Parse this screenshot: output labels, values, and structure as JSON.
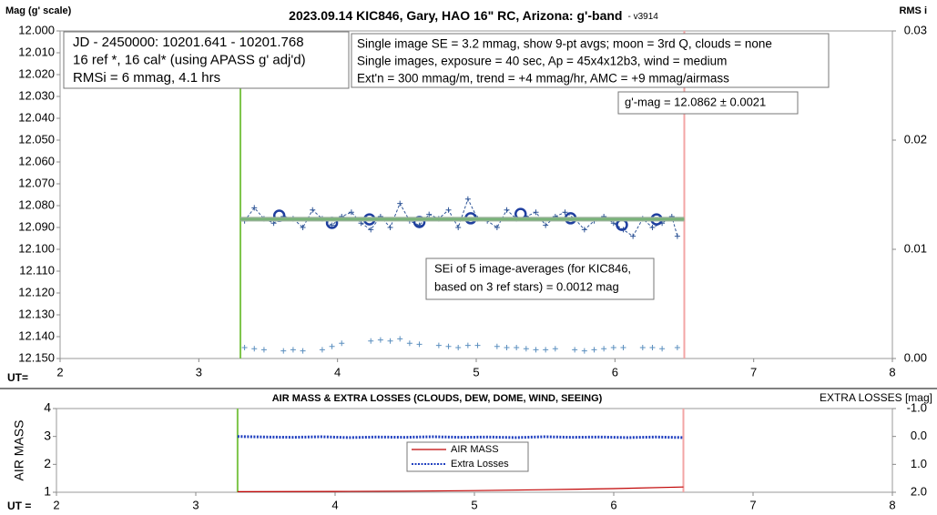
{
  "chart_data": [
    {
      "type": "line",
      "title": "2023.09.14 KIC846, Gary, HAO 16\" RC, Arizona: g'-band",
      "subtitle": "- v3914",
      "y_label": "Mag (g' scale)",
      "y2_label": "RMS i",
      "x_label": "UT=",
      "xlim": [
        2,
        8
      ],
      "xticks": [
        2,
        3,
        4,
        5,
        6,
        7,
        8
      ],
      "ylim": [
        12.0,
        12.15
      ],
      "y_inverted": true,
      "yticks": [
        {
          "value": 12.0,
          "label": "12.000"
        },
        {
          "value": 12.01,
          "label": "12.010"
        },
        {
          "value": 12.02,
          "label": "12.020"
        },
        {
          "value": 12.03,
          "label": "12.030"
        },
        {
          "value": 12.04,
          "label": "12.040"
        },
        {
          "value": 12.05,
          "label": "12.050"
        },
        {
          "value": 12.06,
          "label": "12.060"
        },
        {
          "value": 12.07,
          "label": "12.070"
        },
        {
          "value": 12.08,
          "label": "12.080"
        },
        {
          "value": 12.09,
          "label": "12.090"
        },
        {
          "value": 12.1,
          "label": "12.100"
        },
        {
          "value": 12.11,
          "label": "12.110"
        },
        {
          "value": 12.12,
          "label": "12.120"
        },
        {
          "value": 12.13,
          "label": "12.130"
        },
        {
          "value": 12.14,
          "label": "12.140"
        },
        {
          "value": 12.15,
          "label": "12.150"
        }
      ],
      "y2lim": [
        0,
        0.03
      ],
      "y2ticks": [
        {
          "value": 0,
          "label": "0.00"
        },
        {
          "value": 0.01,
          "label": "0.01"
        },
        {
          "value": 0.02,
          "label": "0.02"
        },
        {
          "value": 0.03,
          "label": "0.03"
        }
      ],
      "vlines": [
        {
          "x": 3.3,
          "color": "#7dc54a"
        },
        {
          "x": 6.5,
          "color": "#f3a5a5"
        }
      ],
      "series": [
        {
          "color": "#2f5597",
          "marker": "plus",
          "line": "dashed",
          "x": [
            3.33,
            3.4,
            3.47,
            3.54,
            3.61,
            3.68,
            3.75,
            3.82,
            3.89,
            3.96,
            4.03,
            4.1,
            4.17,
            4.24,
            4.31,
            4.38,
            4.45,
            4.52,
            4.59,
            4.66,
            4.73,
            4.8,
            4.87,
            4.94,
            5.01,
            5.08,
            5.15,
            5.22,
            5.29,
            5.36,
            5.43,
            5.5,
            5.57,
            5.64,
            5.71,
            5.78,
            5.85,
            5.92,
            5.99,
            6.06,
            6.13,
            6.2,
            6.27,
            6.34,
            6.41,
            6.45
          ],
          "values": [
            12.087,
            12.081,
            12.086,
            12.088,
            12.085,
            12.086,
            12.09,
            12.082,
            12.086,
            12.089,
            12.085,
            12.083,
            12.088,
            12.091,
            12.085,
            12.09,
            12.079,
            12.087,
            12.089,
            12.084,
            12.086,
            12.082,
            12.09,
            12.077,
            12.086,
            12.087,
            12.09,
            12.082,
            12.086,
            12.085,
            12.083,
            12.089,
            12.085,
            12.083,
            12.086,
            12.091,
            12.087,
            12.085,
            12.088,
            12.091,
            12.094,
            12.086,
            12.09,
            12.088,
            12.085,
            12.094
          ]
        },
        {
          "color": "#1f3f9f",
          "marker": "circle",
          "line": "none",
          "x": [
            3.58,
            3.96,
            4.23,
            4.59,
            4.96,
            5.32,
            5.68,
            6.05,
            6.3
          ],
          "values": [
            12.0846,
            12.0879,
            12.0863,
            12.0875,
            12.0858,
            12.0838,
            12.0858,
            12.0888,
            12.0863
          ]
        },
        {
          "color": "#93b193",
          "marker": "none",
          "line": "thick",
          "x": [
            3.3,
            6.5
          ],
          "values": [
            12.0862,
            12.0862
          ]
        },
        {
          "color": "#5b8fbf",
          "marker": "plus",
          "line": "none",
          "axis": "y2",
          "x": [
            3.33,
            3.4,
            3.47,
            3.61,
            3.68,
            3.75,
            3.89,
            3.96,
            4.03,
            4.24,
            4.31,
            4.38,
            4.45,
            4.52,
            4.59,
            4.73,
            4.8,
            4.87,
            4.94,
            5.01,
            5.15,
            5.22,
            5.29,
            5.36,
            5.43,
            5.5,
            5.57,
            5.71,
            5.78,
            5.85,
            5.92,
            5.99,
            6.06,
            6.2,
            6.27,
            6.34,
            6.45
          ],
          "values": [
            0.001,
            0.0009,
            0.0008,
            0.0007,
            0.0008,
            0.0007,
            0.0008,
            0.0011,
            0.0014,
            0.0016,
            0.0017,
            0.0016,
            0.0018,
            0.0014,
            0.0013,
            0.0012,
            0.0011,
            0.001,
            0.0012,
            0.0012,
            0.0011,
            0.001,
            0.001,
            0.0009,
            0.0008,
            0.0008,
            0.0009,
            0.0008,
            0.0007,
            0.0008,
            0.0009,
            0.001,
            0.001,
            0.001,
            0.001,
            0.0009,
            0.001
          ]
        }
      ],
      "annotations": [
        [
          "JD - 2450000: 10201.641 - 10201.768",
          "16 ref *, 16 cal* (using APASS g' adj'd)",
          "RMSi = 6 mmag, 4.1 hrs"
        ],
        [
          "Single image SE = 3.2 mmag, show  9-pt avgs; moon = 3rd Q, clouds = none",
          "Single images, exposure = 40 sec, Ap = 45x4x12b3, wind = medium",
          "Ext'n = 300 mmag/m, trend = +4 mmag/hr, AMC = +9 mmag/airmass"
        ],
        [
          "g'-mag = 12.0862 ± 0.0021"
        ],
        [
          "SEi of 5 image-averages (for KIC846,",
          "based on 3 ref stars) = 0.0012 mag"
        ]
      ]
    },
    {
      "type": "line",
      "title": "AIR MASS & EXTRA LOSSES (CLOUDS, DEW, DOME, WIND, SEEING)",
      "y_label": "AIR MASS",
      "y2_label": "EXTRA LOSSES [mag]",
      "x_label": "UT =",
      "xlim": [
        2,
        8
      ],
      "xticks": [
        2,
        3,
        4,
        5,
        6,
        7,
        8
      ],
      "ylim": [
        1,
        4
      ],
      "yticks": [
        1,
        2,
        3,
        4
      ],
      "y2lim": [
        -1,
        2
      ],
      "y2_inverted": true,
      "y2ticks": [
        {
          "value": -1,
          "label": "-1.0"
        },
        {
          "value": 0,
          "label": "0.0"
        },
        {
          "value": 1,
          "label": "1.0"
        },
        {
          "value": 2,
          "label": "2.0"
        }
      ],
      "vlines": [
        {
          "x": 3.3,
          "color": "#7dc54a"
        },
        {
          "x": 6.5,
          "color": "#f3a5a5"
        }
      ],
      "series": [
        {
          "name": "AIR MASS",
          "color": "#c00000",
          "marker": "none",
          "line": "solid",
          "x": [
            3.3,
            4.0,
            4.5,
            5.0,
            5.5,
            6.0,
            6.5
          ],
          "values": [
            1.02,
            1.03,
            1.04,
            1.06,
            1.09,
            1.13,
            1.19
          ]
        },
        {
          "name": "Extra Losses",
          "color": "#1f3fbf",
          "marker": "none",
          "line": "dotted",
          "axis": "y2",
          "x": [
            3.3,
            3.5,
            3.7,
            3.9,
            4.1,
            4.3,
            4.5,
            4.7,
            4.9,
            5.1,
            5.3,
            5.5,
            5.7,
            5.9,
            6.1,
            6.3,
            6.5
          ],
          "values": [
            0.0,
            0.02,
            0.03,
            0.01,
            0.04,
            0.02,
            0.03,
            0.01,
            0.03,
            0.02,
            0.04,
            0.01,
            0.03,
            0.02,
            0.04,
            0.02,
            0.04
          ]
        }
      ],
      "legend": "center"
    }
  ]
}
